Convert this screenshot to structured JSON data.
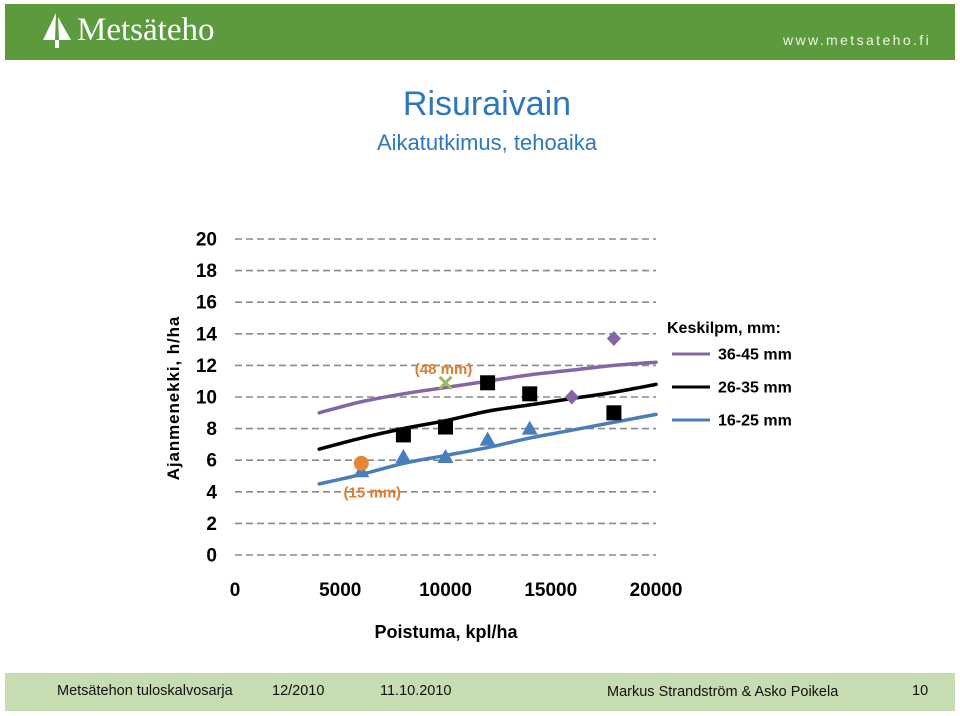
{
  "header": {
    "logo_text": "Metsäteho",
    "logo_icon": "tree-icon",
    "website": "www.metsateho.fi",
    "bg_color": "#5b9b3d"
  },
  "slide": {
    "title": "Risuraivain",
    "subtitle": "Aikatutkimus, tehoaika",
    "title_color": "#2f77bd"
  },
  "chart_data": {
    "type": "scatter",
    "xlabel": "Poistuma, kpl/ha",
    "ylabel": "Ajanmenekki, h/ha",
    "xlim": [
      0,
      20000
    ],
    "ylim": [
      0,
      20
    ],
    "xticks": [
      0,
      5000,
      10000,
      15000,
      20000
    ],
    "yticks": [
      0,
      2,
      4,
      6,
      8,
      10,
      12,
      14,
      16,
      18,
      20
    ],
    "grid": true,
    "legend": {
      "title": "Keskilpm, mm:",
      "position": "right"
    },
    "series": [
      {
        "name": "36-45 mm",
        "color": "#8465a5",
        "marker": "diamond",
        "x": [
          16000,
          18000
        ],
        "y": [
          10.0,
          13.7
        ],
        "trend": {
          "x": [
            4000,
            6000,
            8000,
            10000,
            12000,
            14000,
            16000,
            18000,
            20000
          ],
          "y": [
            9.0,
            9.7,
            10.2,
            10.6,
            11.0,
            11.4,
            11.7,
            12.0,
            12.2
          ]
        }
      },
      {
        "name": "26-35 mm",
        "color": "#000000",
        "marker": "square",
        "x": [
          8000,
          10000,
          12000,
          14000,
          18000
        ],
        "y": [
          7.6,
          8.1,
          10.9,
          10.2,
          9.0
        ],
        "trend": {
          "x": [
            4000,
            6000,
            8000,
            10000,
            12000,
            14000,
            16000,
            18000,
            20000
          ],
          "y": [
            6.7,
            7.4,
            8.0,
            8.5,
            9.1,
            9.5,
            9.9,
            10.3,
            10.8
          ]
        }
      },
      {
        "name": "16-25 mm",
        "color": "#4a7ebb",
        "marker": "triangle",
        "x": [
          6000,
          8000,
          10000,
          12000,
          14000
        ],
        "y": [
          5.3,
          6.2,
          6.2,
          7.3,
          8.0
        ],
        "trend": {
          "x": [
            4000,
            6000,
            8000,
            10000,
            12000,
            14000,
            16000,
            18000,
            20000
          ],
          "y": [
            4.5,
            5.1,
            5.8,
            6.3,
            6.8,
            7.4,
            7.9,
            8.4,
            8.9
          ]
        }
      }
    ],
    "extra_points": [
      {
        "label": "(15 mm)",
        "marker": "circle",
        "color": "#e3873b",
        "label_color": "#e07b2c",
        "x": 6000,
        "y": 5.8
      },
      {
        "label": "(48 mm)",
        "marker": "x",
        "color": "#9bbb59",
        "label_color": "#e07b2c",
        "x": 10000,
        "y": 10.9
      }
    ]
  },
  "footer": {
    "series_name": "Metsätehon tuloskalvosarja",
    "series_date": "12/2010",
    "date": "11.10.2010",
    "authors": "Markus Strandström & Asko Poikela",
    "page_number": "10",
    "bg_color": "#c6dcb1"
  }
}
